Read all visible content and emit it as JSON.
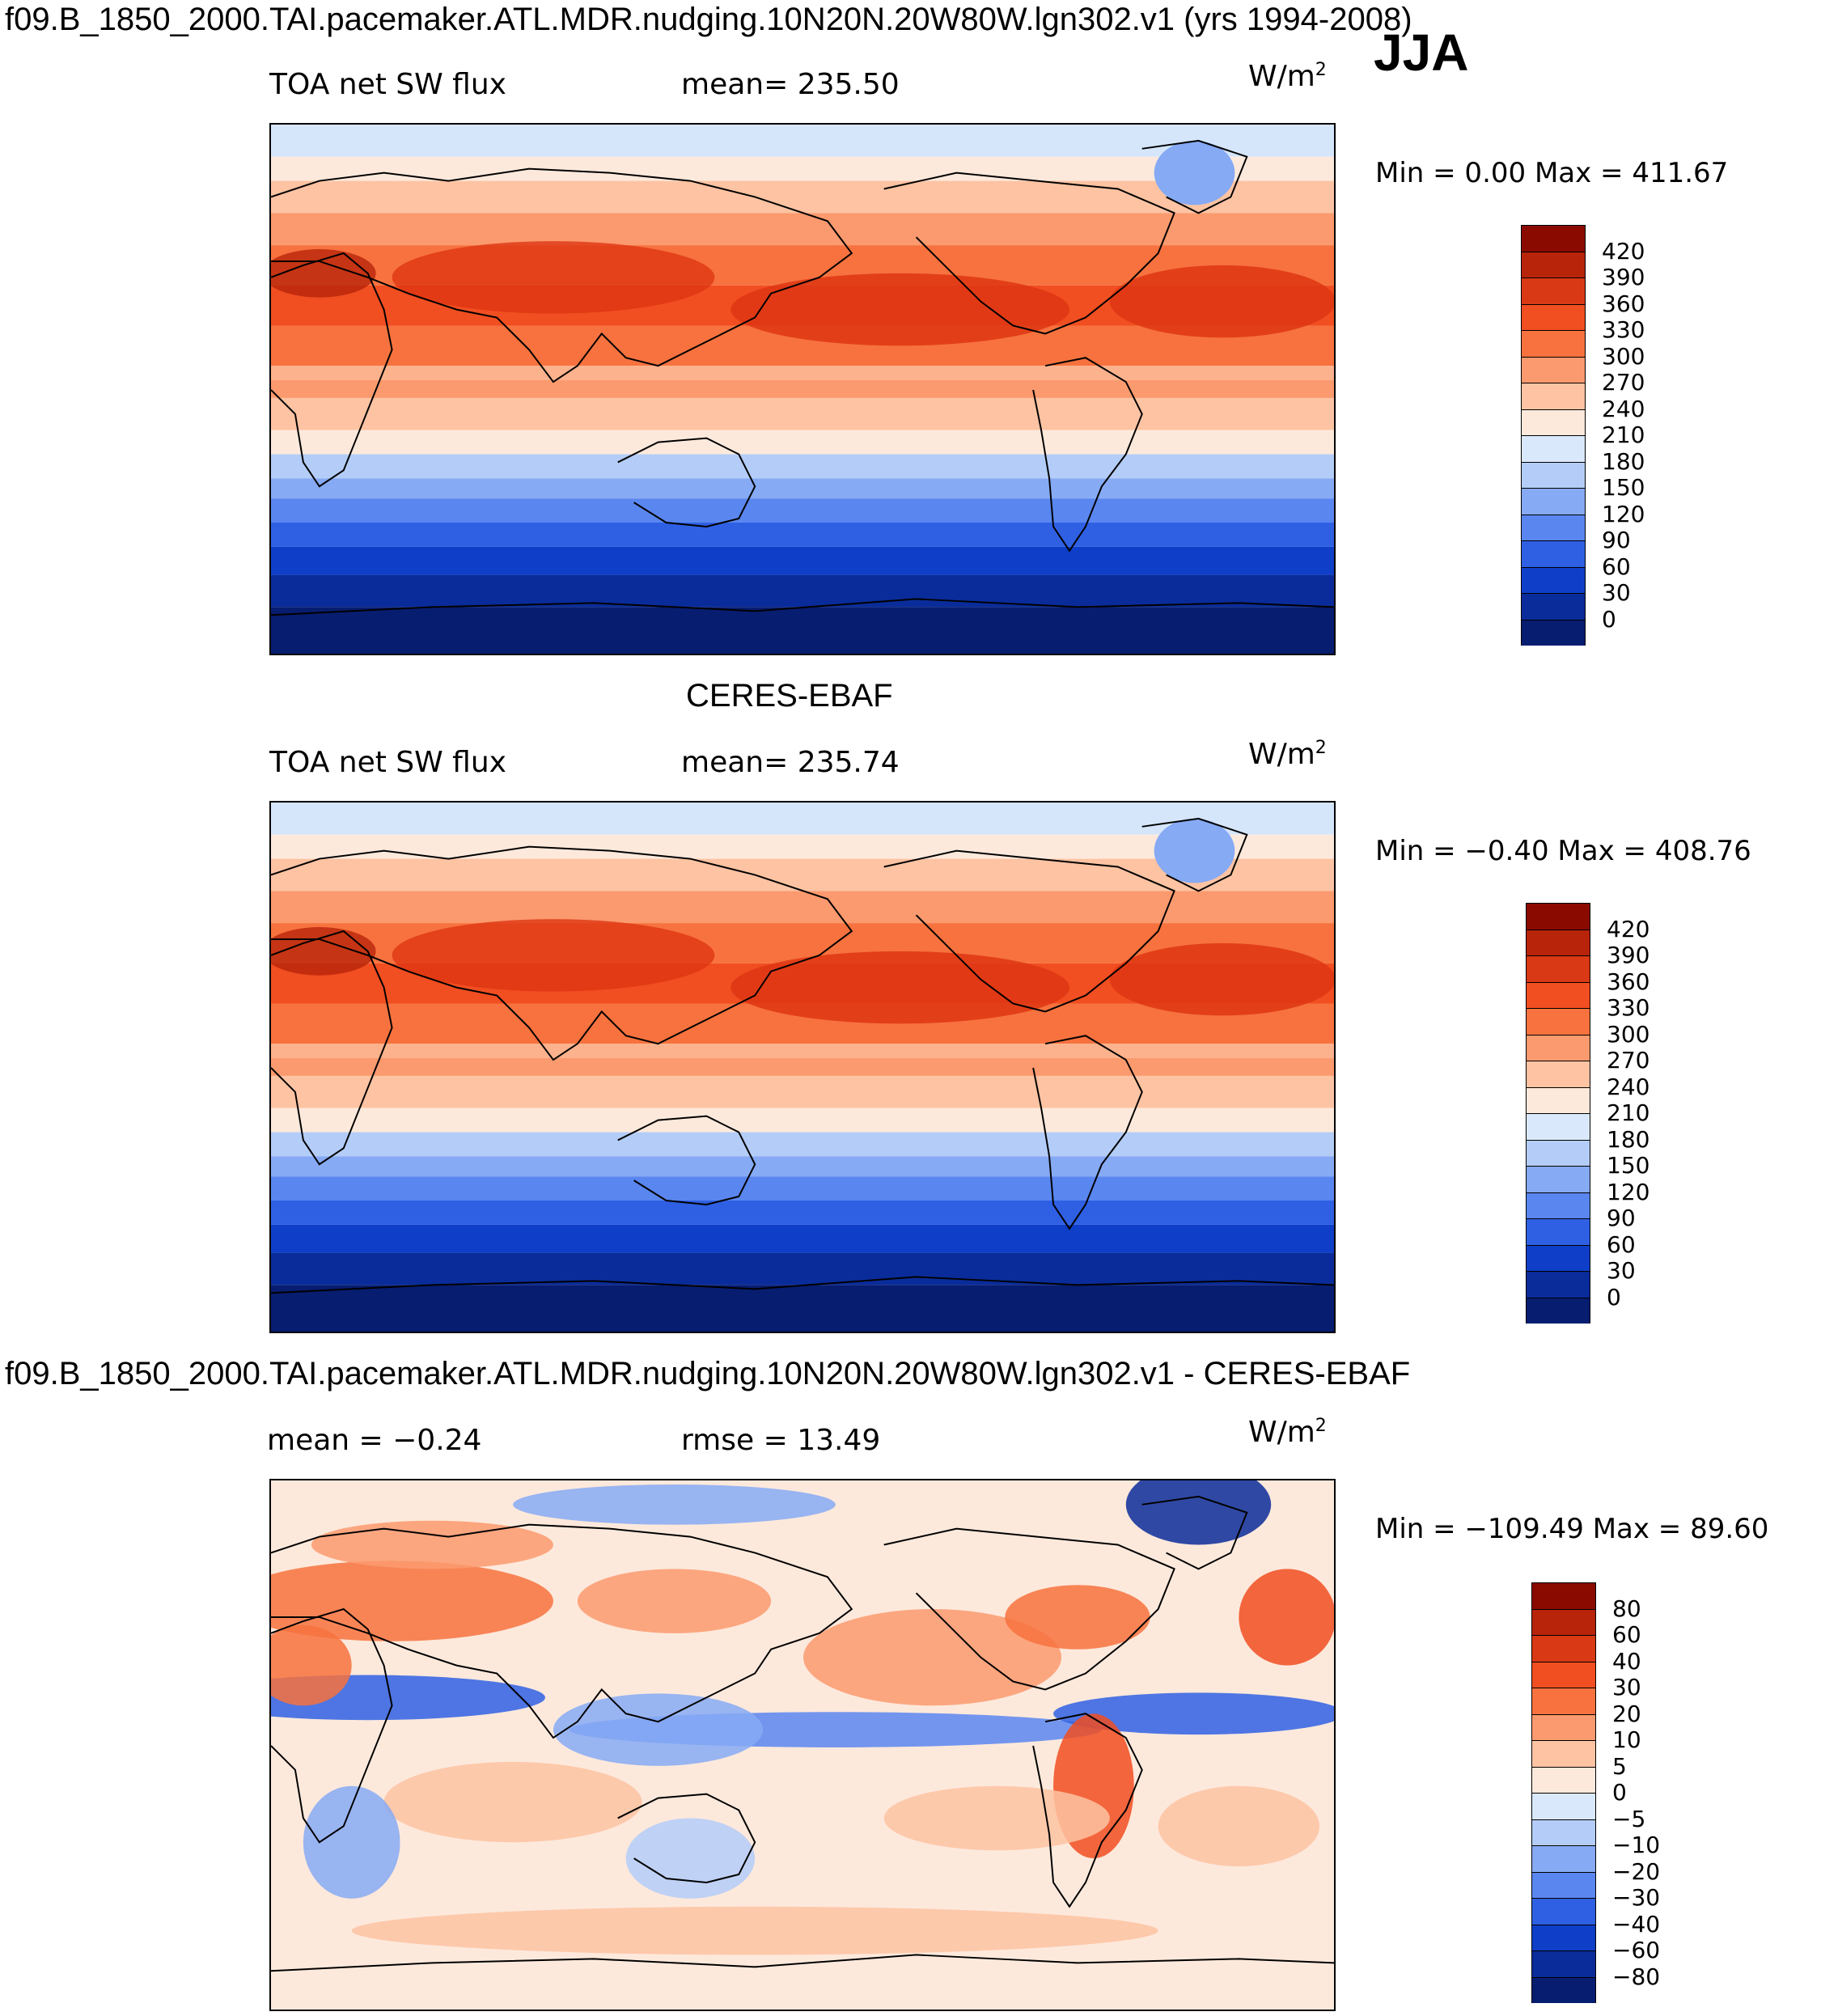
{
  "season": "JJA",
  "colors": {
    "warm": [
      "#fde9dc",
      "#fdd0b5",
      "#fcae8c",
      "#fb8b62",
      "#f66a3a",
      "#ef4e1f",
      "#de3613",
      "#c01f08",
      "#8b0a00"
    ],
    "cool": [
      "#08237a",
      "#0a36b8",
      "#0e4ae0",
      "#2a66ef",
      "#4b82f2",
      "#77a3f5",
      "#a6c4f8",
      "#d5e6fb"
    ],
    "land": "#000000"
  },
  "chart_data": [
    {
      "type": "heatmap",
      "title": "f09.B_1850_2000.TAI.pacemaker.ATL.MDR.nudging.10N20N.20W80W.lgn302.v1 (yrs 1994-2008)",
      "left_label": "TOA net SW flux",
      "center_label": "mean= 235.50",
      "unit": "W/m",
      "unit_sup": "2",
      "minmax": "Min =    0.00 Max = 411.67",
      "min": 0.0,
      "max": 411.67,
      "mean": 235.5,
      "levels": [
        "420",
        "390",
        "360",
        "330",
        "300",
        "270",
        "240",
        "210",
        "180",
        "150",
        "120",
        "90",
        "60",
        "30",
        "0"
      ],
      "palette": [
        "#8b0a00",
        "#b8240a",
        "#d93914",
        "#f14e21",
        "#f7723e",
        "#fb9a6e",
        "#fdc3a2",
        "#fde9dc",
        "#d9e9fb",
        "#b4cdf8",
        "#86aaf4",
        "#5a86f0",
        "#2f60e4",
        "#0f3fc8",
        "#0a2c9a",
        "#071d70"
      ]
    },
    {
      "type": "heatmap",
      "title": "CERES-EBAF",
      "left_label": "TOA net SW flux",
      "center_label": "mean= 235.74",
      "unit": "W/m",
      "unit_sup": "2",
      "minmax": "Min =   −0.40  Max = 408.76",
      "min": -0.4,
      "max": 408.76,
      "mean": 235.74,
      "levels": [
        "420",
        "390",
        "360",
        "330",
        "300",
        "270",
        "240",
        "210",
        "180",
        "150",
        "120",
        "90",
        "60",
        "30",
        "0"
      ],
      "palette": [
        "#8b0a00",
        "#b8240a",
        "#d93914",
        "#f14e21",
        "#f7723e",
        "#fb9a6e",
        "#fdc3a2",
        "#fde9dc",
        "#d9e9fb",
        "#b4cdf8",
        "#86aaf4",
        "#5a86f0",
        "#2f60e4",
        "#0f3fc8",
        "#0a2c9a",
        "#071d70"
      ]
    },
    {
      "type": "heatmap",
      "title": "f09.B_1850_2000.TAI.pacemaker.ATL.MDR.nudging.10N20N.20W80W.lgn302.v1 - CERES-EBAF",
      "left_label": "mean =   −0.24",
      "center_label": "rmse =   13.49",
      "unit": "W/m",
      "unit_sup": "2",
      "minmax": "Min = −109.49 Max =   89.60",
      "min": -109.49,
      "max": 89.6,
      "mean": -0.24,
      "rmse": 13.49,
      "levels": [
        "80",
        "60",
        "40",
        "30",
        "20",
        "10",
        "5",
        "0",
        "−5",
        "−10",
        "−20",
        "−30",
        "−40",
        "−60",
        "−80"
      ],
      "palette": [
        "#8b0a00",
        "#b8240a",
        "#d93914",
        "#f14e21",
        "#f7723e",
        "#fb9a6e",
        "#fdc3a2",
        "#fde9dc",
        "#d9e9fb",
        "#b4cdf8",
        "#86aaf4",
        "#5a86f0",
        "#2f60e4",
        "#0f3fc8",
        "#0a2c9a",
        "#071d70"
      ]
    }
  ]
}
